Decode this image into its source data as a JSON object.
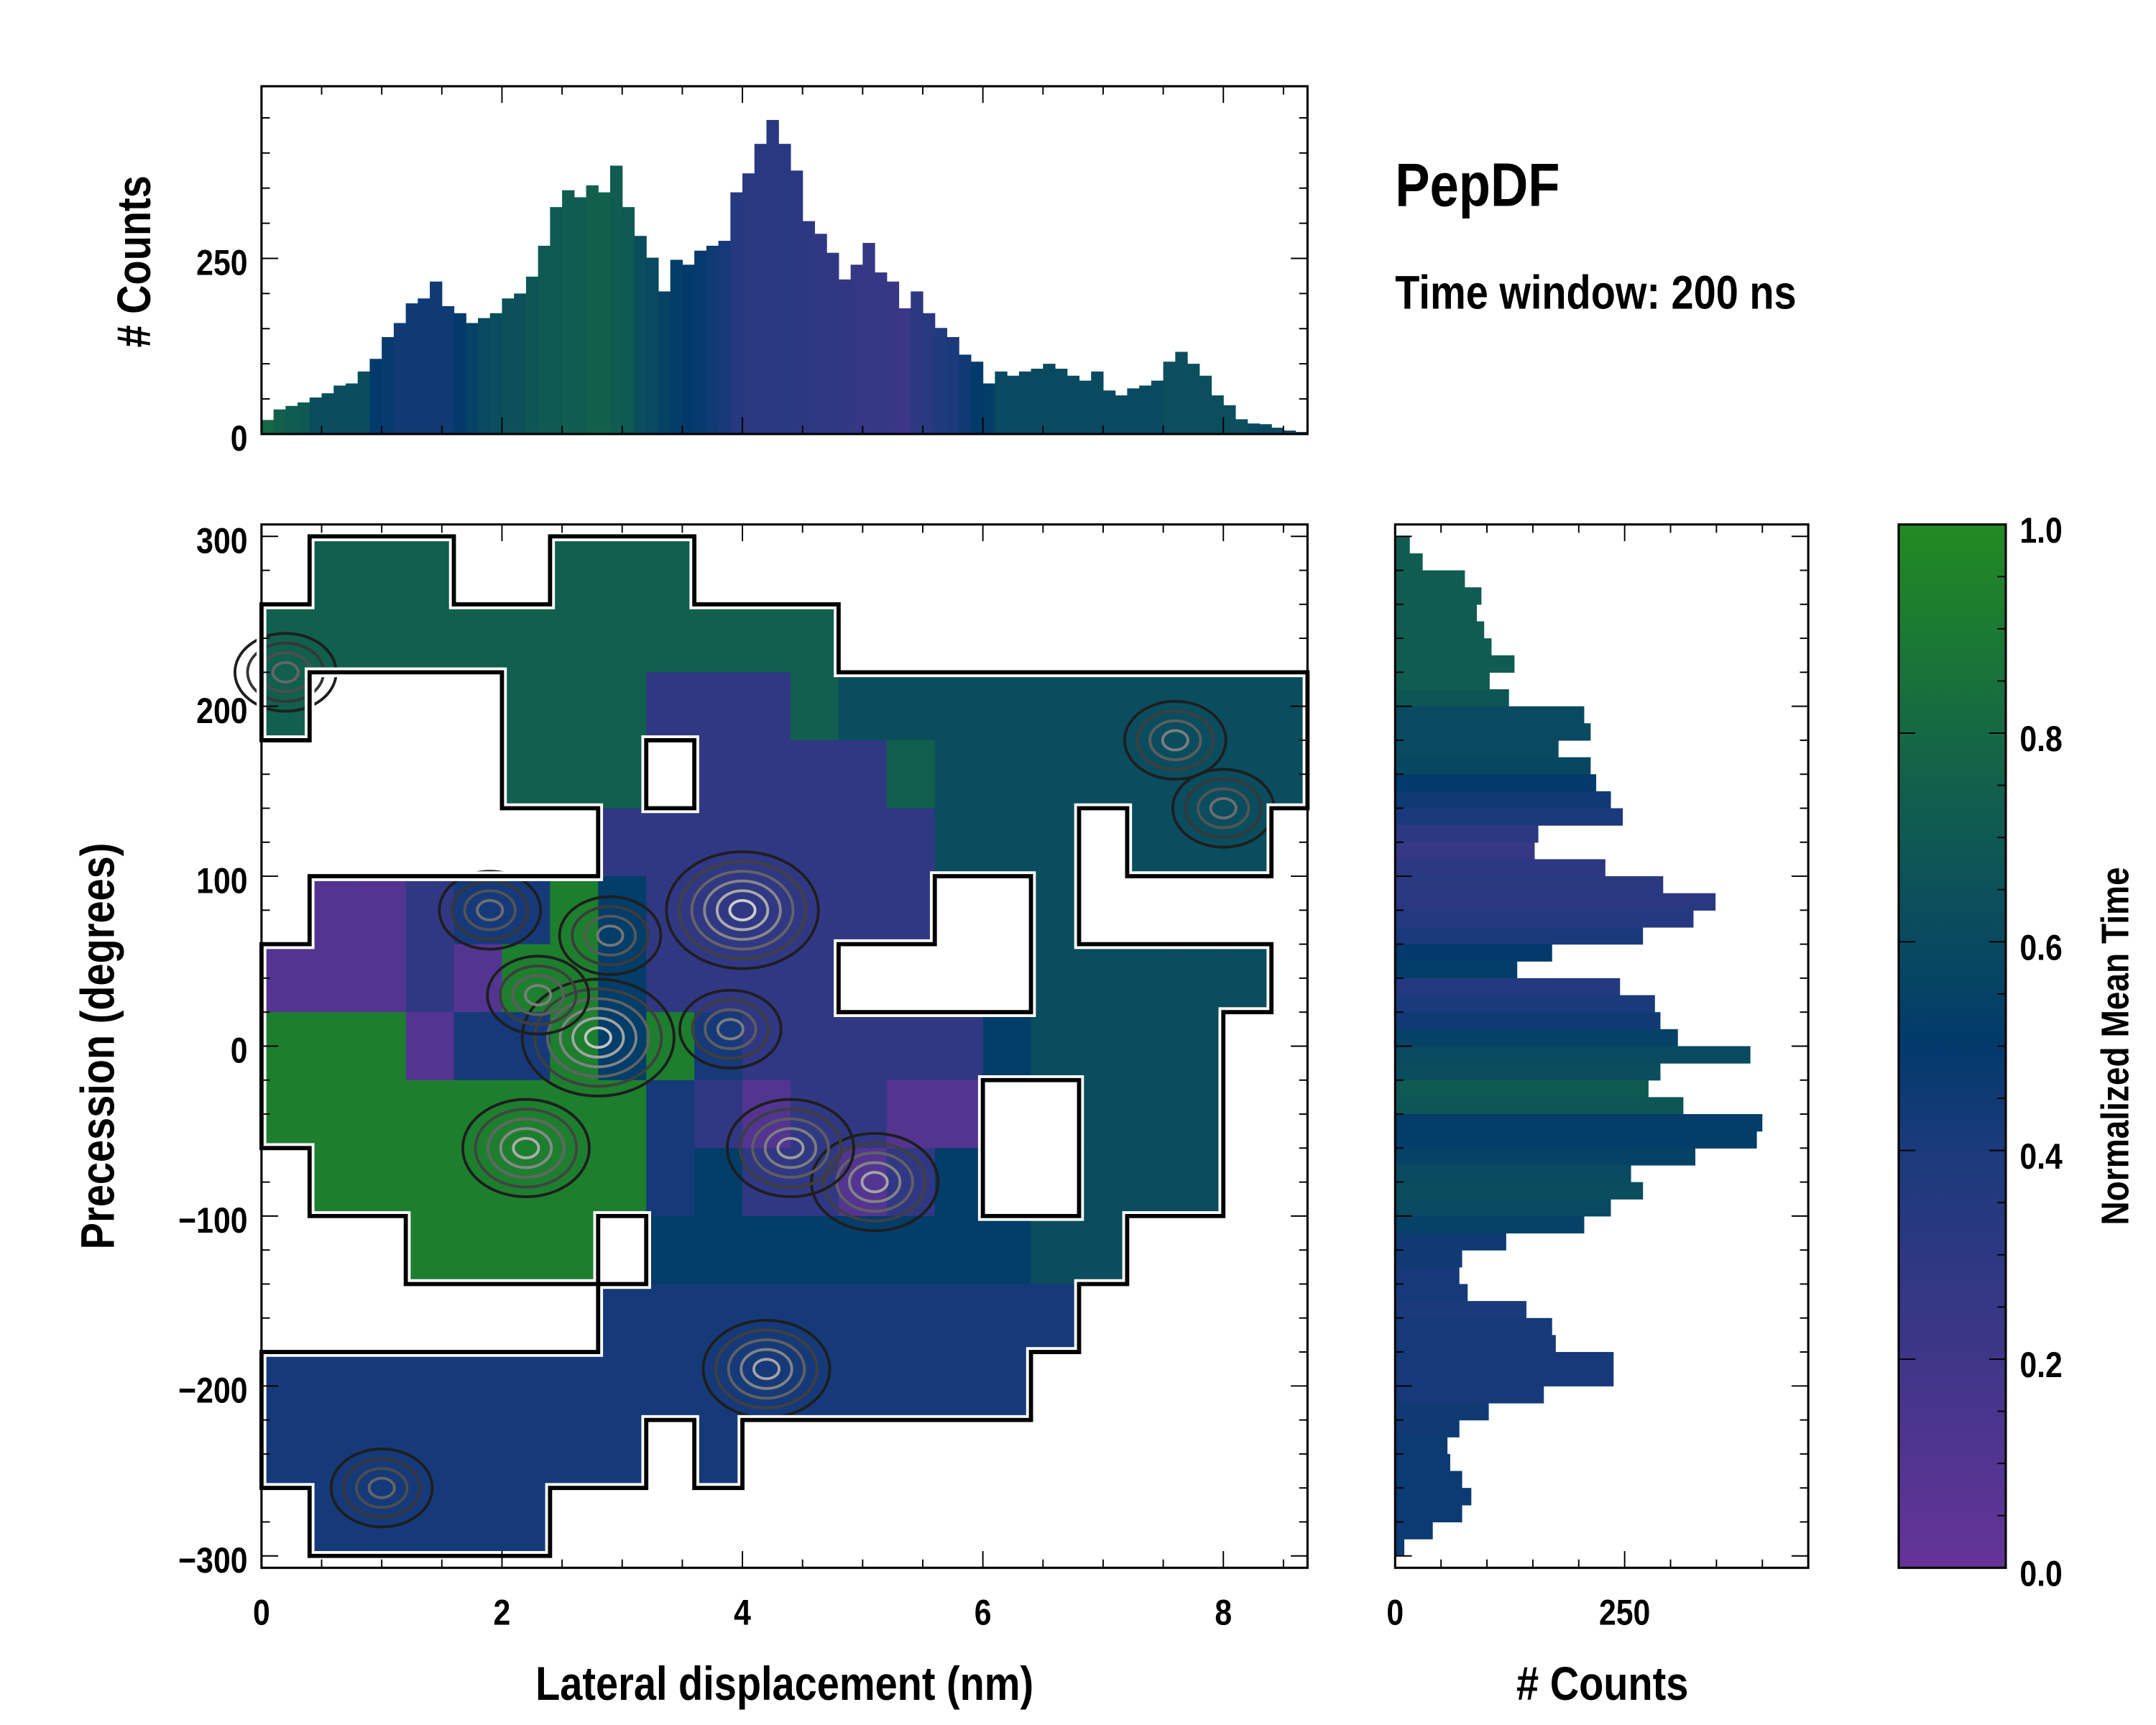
{
  "header": {
    "title": "PepDF",
    "subtitle": "Time window: 200 ns"
  },
  "colormap": {
    "label": "Normalized Mean Time",
    "stops": [
      [
        0.0,
        "#663399"
      ],
      [
        0.2,
        "#3f3688"
      ],
      [
        0.4,
        "#1b3a7c"
      ],
      [
        0.5,
        "#023a6b"
      ],
      [
        0.62,
        "#0a4d5e"
      ],
      [
        0.75,
        "#12604c"
      ],
      [
        0.88,
        "#1a7636"
      ],
      [
        1.0,
        "#228b22"
      ]
    ],
    "ticks": [
      {
        "v": 0.0,
        "label": "0.0"
      },
      {
        "v": 0.2,
        "label": "0.2"
      },
      {
        "v": 0.4,
        "label": "0.4"
      },
      {
        "v": 0.6,
        "label": "0.6"
      },
      {
        "v": 0.8,
        "label": "0.8"
      },
      {
        "v": 1.0,
        "label": "1.0"
      }
    ]
  },
  "chart_data": [
    {
      "type": "bar",
      "name": "top-marginal-histogram",
      "xlabel": "",
      "ylabel": "# Counts",
      "xlim": [
        0,
        8.7
      ],
      "ylim": [
        0,
        495
      ],
      "yticks": [
        {
          "v": 0,
          "label": "0"
        },
        {
          "v": 250,
          "label": "250"
        }
      ],
      "bin_width": 0.1,
      "x_start": 0.0,
      "values": [
        20,
        35,
        40,
        45,
        52,
        58,
        69,
        72,
        89,
        107,
        138,
        158,
        186,
        193,
        217,
        182,
        172,
        158,
        165,
        172,
        193,
        200,
        224,
        268,
        323,
        347,
        337,
        354,
        344,
        382,
        323,
        282,
        251,
        203,
        248,
        241,
        261,
        268,
        275,
        344,
        371,
        413,
        447,
        413,
        375,
        303,
        285,
        258,
        220,
        241,
        272,
        230,
        217,
        179,
        203,
        172,
        151,
        138,
        113,
        103,
        72,
        89,
        83,
        89,
        93,
        100,
        93,
        83,
        76,
        89,
        62,
        55,
        65,
        69,
        76,
        103,
        117,
        100,
        83,
        55,
        41,
        21,
        15,
        14,
        9,
        5,
        3
      ],
      "mean_time": [
        0.8,
        0.75,
        0.72,
        0.7,
        0.62,
        0.62,
        0.62,
        0.62,
        0.62,
        0.5,
        0.48,
        0.45,
        0.45,
        0.45,
        0.45,
        0.45,
        0.5,
        0.55,
        0.6,
        0.62,
        0.65,
        0.65,
        0.68,
        0.7,
        0.7,
        0.72,
        0.72,
        0.75,
        0.75,
        0.72,
        0.7,
        0.62,
        0.6,
        0.55,
        0.52,
        0.5,
        0.48,
        0.45,
        0.42,
        0.35,
        0.33,
        0.32,
        0.32,
        0.32,
        0.3,
        0.3,
        0.28,
        0.28,
        0.27,
        0.26,
        0.25,
        0.25,
        0.24,
        0.22,
        0.3,
        0.33,
        0.38,
        0.4,
        0.45,
        0.5,
        0.52,
        0.6,
        0.6,
        0.6,
        0.6,
        0.6,
        0.6,
        0.6,
        0.6,
        0.6,
        0.6,
        0.6,
        0.6,
        0.6,
        0.6,
        0.63,
        0.63,
        0.63,
        0.63,
        0.63,
        0.63,
        0.63,
        0.6,
        0.6,
        0.6,
        0.6,
        0.6
      ]
    },
    {
      "type": "heatmap",
      "name": "main-2d-map",
      "xlabel": "Lateral displacement (nm)",
      "ylabel": "Precession (degrees)",
      "xlim": [
        0,
        8.7
      ],
      "ylim": [
        -307,
        307
      ],
      "xticks": [
        {
          "v": 0,
          "label": "0"
        },
        {
          "v": 2,
          "label": "2"
        },
        {
          "v": 4,
          "label": "4"
        },
        {
          "v": 6,
          "label": "6"
        },
        {
          "v": 8,
          "label": "8"
        }
      ],
      "yticks": [
        {
          "v": 300,
          "label": "300"
        },
        {
          "v": 200,
          "label": "200"
        },
        {
          "v": 100,
          "label": "100"
        },
        {
          "v": 0,
          "label": "0"
        },
        {
          "v": -100,
          "label": "−100"
        },
        {
          "v": -200,
          "label": "−200"
        },
        {
          "v": -300,
          "label": "−300"
        }
      ],
      "cell_width_nm": 0.4,
      "cell_height_deg": 40,
      "row_centers_deg": [
        280,
        240,
        200,
        160,
        120,
        80,
        40,
        0,
        -40,
        -80,
        -120,
        -160,
        -200,
        -240,
        -280
      ],
      "codes": {
        "p": 0.1,
        "i": 0.28,
        "b": 0.42,
        "n": 0.52,
        "t": 0.62,
        "g": 0.74,
        "G": 0.93
      },
      "rows": [
        ".ggg..ggg.............",
        "gggggggggggg..........",
        "g....gggiiigtttttttttt",
        ".....ggg.iiiigtttttttt",
        ".......iiiiiiittt.ttt.",
        ".ppibbGniiiiii..t.....",
        "pppipGGniiii....ttttt.",
        "GGGpbbGnGbiiiiintttt..",
        "GGGGGGGGbipiipp..ttt..",
        ".GGGGGGGbniipin..ttt..",
        "...GGGG.nnnnnnnntt....",
        ".......bbbbbbbbbb.....",
        "bbbbbbbbbbbbbbbb......",
        "bbbbbbbb.b............",
        ".bbbbb................"
      ],
      "density_peaks": [
        {
          "x": 4.0,
          "y": 80,
          "level": 1.0
        },
        {
          "x": 2.8,
          "y": 5,
          "level": 0.95
        },
        {
          "x": 2.2,
          "y": -60,
          "level": 0.85
        },
        {
          "x": 5.1,
          "y": -80,
          "level": 0.8
        },
        {
          "x": 4.4,
          "y": -60,
          "level": 0.75
        },
        {
          "x": 4.2,
          "y": -190,
          "level": 0.8
        },
        {
          "x": 3.9,
          "y": 10,
          "level": 0.6
        },
        {
          "x": 2.3,
          "y": 30,
          "level": 0.6
        },
        {
          "x": 2.9,
          "y": 65,
          "level": 0.55
        },
        {
          "x": 1.9,
          "y": 80,
          "level": 0.5
        },
        {
          "x": 7.6,
          "y": 180,
          "level": 0.6
        },
        {
          "x": 8.0,
          "y": 140,
          "level": 0.5
        },
        {
          "x": 1.0,
          "y": -260,
          "level": 0.45
        },
        {
          "x": 0.2,
          "y": 220,
          "level": 0.45
        }
      ]
    },
    {
      "type": "bar",
      "orientation": "horizontal",
      "name": "right-marginal-histogram",
      "xlabel": "# Counts",
      "ylabel": "",
      "xlim": [
        0,
        450
      ],
      "ylim": [
        -307,
        307
      ],
      "xticks": [
        {
          "v": 0,
          "label": "0"
        },
        {
          "v": 250,
          "label": "250"
        }
      ],
      "bin_height": 10,
      "y_start": 300,
      "values": [
        16,
        30,
        76,
        94,
        89,
        97,
        105,
        130,
        103,
        124,
        206,
        213,
        178,
        213,
        219,
        235,
        248,
        156,
        152,
        229,
        292,
        349,
        325,
        270,
        171,
        133,
        245,
        283,
        289,
        308,
        387,
        289,
        276,
        314,
        400,
        394,
        327,
        257,
        270,
        235,
        206,
        121,
        73,
        70,
        79,
        143,
        171,
        175,
        238,
        238,
        162,
        102,
        70,
        57,
        60,
        73,
        83,
        73,
        41,
        10
      ],
      "mean_time": [
        0.72,
        0.72,
        0.72,
        0.72,
        0.72,
        0.72,
        0.72,
        0.72,
        0.72,
        0.68,
        0.6,
        0.6,
        0.6,
        0.58,
        0.5,
        0.45,
        0.4,
        0.3,
        0.25,
        0.3,
        0.33,
        0.32,
        0.35,
        0.4,
        0.5,
        0.52,
        0.35,
        0.4,
        0.45,
        0.55,
        0.6,
        0.62,
        0.7,
        0.68,
        0.52,
        0.52,
        0.55,
        0.6,
        0.62,
        0.6,
        0.55,
        0.45,
        0.44,
        0.42,
        0.42,
        0.4,
        0.42,
        0.42,
        0.42,
        0.42,
        0.42,
        0.44,
        0.45,
        0.46,
        0.46,
        0.46,
        0.46,
        0.46,
        0.46,
        0.46
      ]
    }
  ]
}
